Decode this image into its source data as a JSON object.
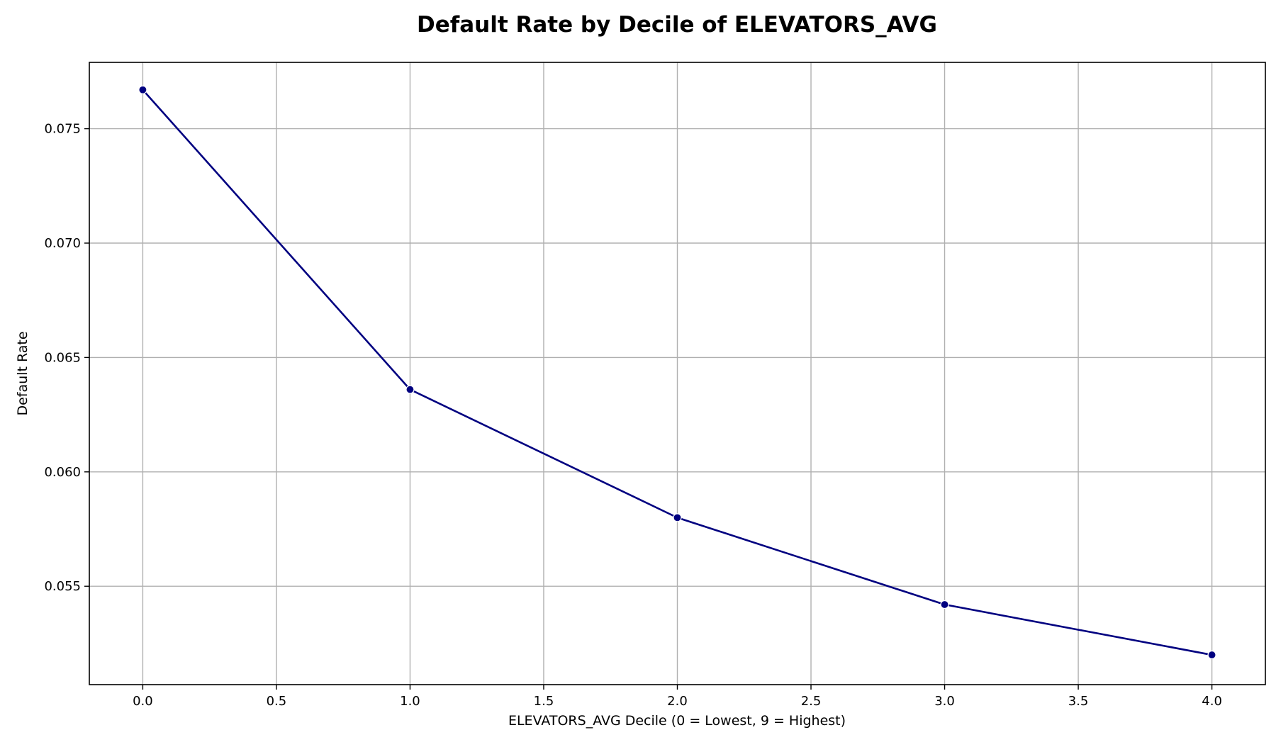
{
  "chart_data": {
    "type": "line",
    "title": "Default Rate by Decile of ELEVATORS_AVG",
    "xlabel": "ELEVATORS_AVG Decile (0 = Lowest, 9 = Highest)",
    "ylabel": "Default Rate",
    "x": [
      0,
      1,
      2,
      3,
      4
    ],
    "series": [
      {
        "values": [
          0.0767,
          0.0636,
          0.058,
          0.0542,
          0.052
        ]
      }
    ],
    "xlim": [
      -0.2,
      4.2
    ],
    "ylim": [
      0.0507,
      0.0779
    ],
    "xticks": [
      0.0,
      0.5,
      1.0,
      1.5,
      2.0,
      2.5,
      3.0,
      3.5,
      4.0
    ],
    "xtick_labels": [
      "0.0",
      "0.5",
      "1.0",
      "1.5",
      "2.0",
      "2.5",
      "3.0",
      "3.5",
      "4.0"
    ],
    "yticks": [
      0.055,
      0.06,
      0.065,
      0.07,
      0.075
    ],
    "ytick_labels": [
      "0.055",
      "0.060",
      "0.065",
      "0.070",
      "0.075"
    ],
    "grid": true,
    "colors": {
      "line": "#000080",
      "marker": "#000080",
      "marker_edge": "#ffffff",
      "grid": "#b0b0b0",
      "axes": "#000000"
    }
  }
}
